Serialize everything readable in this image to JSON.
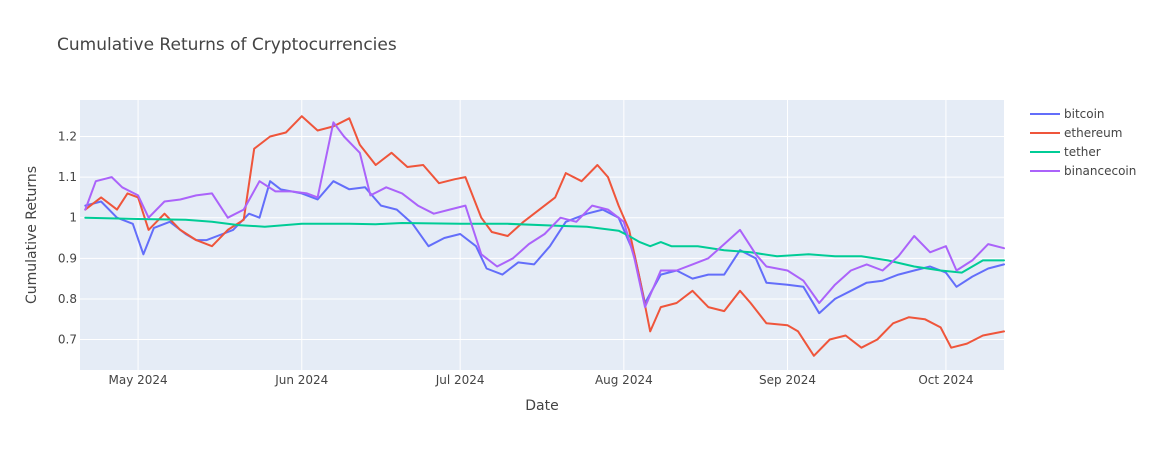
{
  "chart_data": {
    "type": "line",
    "title": "Cumulative Returns of Cryptocurrencies",
    "xlabel": "Date",
    "ylabel": "Cumulative Returns",
    "x_tick_labels": [
      "May 2024",
      "Jun 2024",
      "Jul 2024",
      "Aug 2024",
      "Sep 2024",
      "Oct 2024"
    ],
    "x_tick_dates": [
      "2024-05-01",
      "2024-06-01",
      "2024-07-01",
      "2024-08-01",
      "2024-09-01",
      "2024-10-01"
    ],
    "x_range": [
      "2024-04-20",
      "2024-10-12"
    ],
    "y_ticks": [
      0.7,
      0.8,
      0.9,
      1,
      1.1,
      1.2
    ],
    "y_tick_labels": [
      "0.7",
      "0.8",
      "0.9",
      "1",
      "1.1",
      "1.2"
    ],
    "ylim": [
      0.625,
      1.29
    ],
    "grid": true,
    "legend_position": "top-right",
    "background": "#e5ecf6",
    "series": [
      {
        "name": "bitcoin",
        "color": "#636efa",
        "points": [
          [
            "2024-04-21",
            1.03
          ],
          [
            "2024-04-24",
            1.04
          ],
          [
            "2024-04-27",
            1.0
          ],
          [
            "2024-04-30",
            0.985
          ],
          [
            "2024-05-02",
            0.91
          ],
          [
            "2024-05-04",
            0.975
          ],
          [
            "2024-05-07",
            0.99
          ],
          [
            "2024-05-10",
            0.96
          ],
          [
            "2024-05-12",
            0.945
          ],
          [
            "2024-05-14",
            0.945
          ],
          [
            "2024-05-17",
            0.96
          ],
          [
            "2024-05-19",
            0.97
          ],
          [
            "2024-05-22",
            1.01
          ],
          [
            "2024-05-24",
            1.0
          ],
          [
            "2024-05-26",
            1.09
          ],
          [
            "2024-05-28",
            1.07
          ],
          [
            "2024-06-01",
            1.06
          ],
          [
            "2024-06-04",
            1.045
          ],
          [
            "2024-06-07",
            1.09
          ],
          [
            "2024-06-10",
            1.07
          ],
          [
            "2024-06-13",
            1.075
          ],
          [
            "2024-06-16",
            1.03
          ],
          [
            "2024-06-19",
            1.02
          ],
          [
            "2024-06-22",
            0.985
          ],
          [
            "2024-06-25",
            0.93
          ],
          [
            "2024-06-28",
            0.95
          ],
          [
            "2024-07-01",
            0.96
          ],
          [
            "2024-07-04",
            0.93
          ],
          [
            "2024-07-06",
            0.875
          ],
          [
            "2024-07-09",
            0.86
          ],
          [
            "2024-07-12",
            0.89
          ],
          [
            "2024-07-15",
            0.885
          ],
          [
            "2024-07-18",
            0.93
          ],
          [
            "2024-07-21",
            0.99
          ],
          [
            "2024-07-25",
            1.01
          ],
          [
            "2024-07-28",
            1.02
          ],
          [
            "2024-07-31",
            1.0
          ],
          [
            "2024-08-03",
            0.91
          ],
          [
            "2024-08-05",
            0.79
          ],
          [
            "2024-08-08",
            0.86
          ],
          [
            "2024-08-11",
            0.87
          ],
          [
            "2024-08-14",
            0.85
          ],
          [
            "2024-08-17",
            0.86
          ],
          [
            "2024-08-20",
            0.86
          ],
          [
            "2024-08-23",
            0.92
          ],
          [
            "2024-08-26",
            0.9
          ],
          [
            "2024-08-28",
            0.84
          ],
          [
            "2024-09-01",
            0.835
          ],
          [
            "2024-09-04",
            0.83
          ],
          [
            "2024-09-07",
            0.765
          ],
          [
            "2024-09-10",
            0.8
          ],
          [
            "2024-09-13",
            0.82
          ],
          [
            "2024-09-16",
            0.84
          ],
          [
            "2024-09-19",
            0.845
          ],
          [
            "2024-09-22",
            0.86
          ],
          [
            "2024-09-25",
            0.87
          ],
          [
            "2024-09-28",
            0.88
          ],
          [
            "2024-10-01",
            0.865
          ],
          [
            "2024-10-03",
            0.83
          ],
          [
            "2024-10-06",
            0.855
          ],
          [
            "2024-10-09",
            0.875
          ],
          [
            "2024-10-12",
            0.885
          ]
        ]
      },
      {
        "name": "ethereum",
        "color": "#ef553b",
        "points": [
          [
            "2024-04-21",
            1.02
          ],
          [
            "2024-04-24",
            1.05
          ],
          [
            "2024-04-27",
            1.02
          ],
          [
            "2024-04-29",
            1.06
          ],
          [
            "2024-05-01",
            1.05
          ],
          [
            "2024-05-03",
            0.97
          ],
          [
            "2024-05-06",
            1.01
          ],
          [
            "2024-05-09",
            0.97
          ],
          [
            "2024-05-12",
            0.945
          ],
          [
            "2024-05-15",
            0.93
          ],
          [
            "2024-05-18",
            0.97
          ],
          [
            "2024-05-21",
            0.995
          ],
          [
            "2024-05-23",
            1.17
          ],
          [
            "2024-05-26",
            1.2
          ],
          [
            "2024-05-29",
            1.21
          ],
          [
            "2024-06-01",
            1.25
          ],
          [
            "2024-06-04",
            1.215
          ],
          [
            "2024-06-07",
            1.225
          ],
          [
            "2024-06-10",
            1.245
          ],
          [
            "2024-06-12",
            1.18
          ],
          [
            "2024-06-15",
            1.13
          ],
          [
            "2024-06-18",
            1.16
          ],
          [
            "2024-06-21",
            1.125
          ],
          [
            "2024-06-24",
            1.13
          ],
          [
            "2024-06-27",
            1.085
          ],
          [
            "2024-06-30",
            1.095
          ],
          [
            "2024-07-02",
            1.1
          ],
          [
            "2024-07-05",
            1.0
          ],
          [
            "2024-07-07",
            0.965
          ],
          [
            "2024-07-10",
            0.955
          ],
          [
            "2024-07-13",
            0.99
          ],
          [
            "2024-07-16",
            1.02
          ],
          [
            "2024-07-19",
            1.05
          ],
          [
            "2024-07-21",
            1.11
          ],
          [
            "2024-07-24",
            1.09
          ],
          [
            "2024-07-27",
            1.13
          ],
          [
            "2024-07-29",
            1.1
          ],
          [
            "2024-07-31",
            1.03
          ],
          [
            "2024-08-02",
            0.97
          ],
          [
            "2024-08-04",
            0.85
          ],
          [
            "2024-08-06",
            0.72
          ],
          [
            "2024-08-08",
            0.78
          ],
          [
            "2024-08-11",
            0.79
          ],
          [
            "2024-08-14",
            0.82
          ],
          [
            "2024-08-17",
            0.78
          ],
          [
            "2024-08-20",
            0.77
          ],
          [
            "2024-08-23",
            0.82
          ],
          [
            "2024-08-25",
            0.79
          ],
          [
            "2024-08-28",
            0.74
          ],
          [
            "2024-09-01",
            0.735
          ],
          [
            "2024-09-03",
            0.72
          ],
          [
            "2024-09-06",
            0.66
          ],
          [
            "2024-09-09",
            0.7
          ],
          [
            "2024-09-12",
            0.71
          ],
          [
            "2024-09-15",
            0.68
          ],
          [
            "2024-09-18",
            0.7
          ],
          [
            "2024-09-21",
            0.74
          ],
          [
            "2024-09-24",
            0.755
          ],
          [
            "2024-09-27",
            0.75
          ],
          [
            "2024-09-30",
            0.73
          ],
          [
            "2024-10-02",
            0.68
          ],
          [
            "2024-10-05",
            0.69
          ],
          [
            "2024-10-08",
            0.71
          ],
          [
            "2024-10-12",
            0.72
          ]
        ]
      },
      {
        "name": "tether",
        "color": "#00cc96",
        "points": [
          [
            "2024-04-21",
            1.0
          ],
          [
            "2024-05-01",
            0.997
          ],
          [
            "2024-05-10",
            0.995
          ],
          [
            "2024-05-15",
            0.99
          ],
          [
            "2024-05-20",
            0.982
          ],
          [
            "2024-05-25",
            0.978
          ],
          [
            "2024-06-01",
            0.985
          ],
          [
            "2024-06-10",
            0.985
          ],
          [
            "2024-06-15",
            0.984
          ],
          [
            "2024-06-20",
            0.987
          ],
          [
            "2024-07-01",
            0.985
          ],
          [
            "2024-07-10",
            0.985
          ],
          [
            "2024-07-20",
            0.98
          ],
          [
            "2024-07-25",
            0.978
          ],
          [
            "2024-07-31",
            0.968
          ],
          [
            "2024-08-02",
            0.955
          ],
          [
            "2024-08-04",
            0.94
          ],
          [
            "2024-08-06",
            0.93
          ],
          [
            "2024-08-08",
            0.94
          ],
          [
            "2024-08-10",
            0.93
          ],
          [
            "2024-08-15",
            0.93
          ],
          [
            "2024-08-20",
            0.92
          ],
          [
            "2024-08-25",
            0.915
          ],
          [
            "2024-08-30",
            0.905
          ],
          [
            "2024-09-05",
            0.91
          ],
          [
            "2024-09-10",
            0.905
          ],
          [
            "2024-09-15",
            0.905
          ],
          [
            "2024-09-20",
            0.895
          ],
          [
            "2024-09-25",
            0.88
          ],
          [
            "2024-09-30",
            0.87
          ],
          [
            "2024-10-04",
            0.865
          ],
          [
            "2024-10-08",
            0.895
          ],
          [
            "2024-10-12",
            0.895
          ]
        ]
      },
      {
        "name": "binancecoin",
        "color": "#ab63fa",
        "points": [
          [
            "2024-04-21",
            1.02
          ],
          [
            "2024-04-23",
            1.09
          ],
          [
            "2024-04-26",
            1.1
          ],
          [
            "2024-04-28",
            1.075
          ],
          [
            "2024-05-01",
            1.055
          ],
          [
            "2024-05-03",
            1.0
          ],
          [
            "2024-05-06",
            1.04
          ],
          [
            "2024-05-09",
            1.045
          ],
          [
            "2024-05-12",
            1.055
          ],
          [
            "2024-05-15",
            1.06
          ],
          [
            "2024-05-18",
            1.0
          ],
          [
            "2024-05-21",
            1.02
          ],
          [
            "2024-05-24",
            1.09
          ],
          [
            "2024-05-27",
            1.065
          ],
          [
            "2024-05-30",
            1.065
          ],
          [
            "2024-06-02",
            1.06
          ],
          [
            "2024-06-04",
            1.05
          ],
          [
            "2024-06-07",
            1.235
          ],
          [
            "2024-06-09",
            1.2
          ],
          [
            "2024-06-12",
            1.16
          ],
          [
            "2024-06-14",
            1.055
          ],
          [
            "2024-06-17",
            1.075
          ],
          [
            "2024-06-20",
            1.06
          ],
          [
            "2024-06-23",
            1.03
          ],
          [
            "2024-06-26",
            1.01
          ],
          [
            "2024-06-29",
            1.02
          ],
          [
            "2024-07-02",
            1.03
          ],
          [
            "2024-07-05",
            0.91
          ],
          [
            "2024-07-08",
            0.88
          ],
          [
            "2024-07-11",
            0.9
          ],
          [
            "2024-07-14",
            0.935
          ],
          [
            "2024-07-17",
            0.96
          ],
          [
            "2024-07-20",
            1.0
          ],
          [
            "2024-07-23",
            0.99
          ],
          [
            "2024-07-26",
            1.03
          ],
          [
            "2024-07-29",
            1.02
          ],
          [
            "2024-08-01",
            0.99
          ],
          [
            "2024-08-03",
            0.9
          ],
          [
            "2024-08-05",
            0.78
          ],
          [
            "2024-08-08",
            0.87
          ],
          [
            "2024-08-11",
            0.87
          ],
          [
            "2024-08-14",
            0.885
          ],
          [
            "2024-08-17",
            0.9
          ],
          [
            "2024-08-20",
            0.935
          ],
          [
            "2024-08-23",
            0.97
          ],
          [
            "2024-08-26",
            0.91
          ],
          [
            "2024-08-28",
            0.88
          ],
          [
            "2024-09-01",
            0.87
          ],
          [
            "2024-09-04",
            0.845
          ],
          [
            "2024-09-07",
            0.79
          ],
          [
            "2024-09-10",
            0.835
          ],
          [
            "2024-09-13",
            0.87
          ],
          [
            "2024-09-16",
            0.885
          ],
          [
            "2024-09-19",
            0.87
          ],
          [
            "2024-09-22",
            0.905
          ],
          [
            "2024-09-25",
            0.955
          ],
          [
            "2024-09-28",
            0.915
          ],
          [
            "2024-10-01",
            0.93
          ],
          [
            "2024-10-03",
            0.87
          ],
          [
            "2024-10-06",
            0.895
          ],
          [
            "2024-10-09",
            0.935
          ],
          [
            "2024-10-12",
            0.925
          ]
        ]
      }
    ]
  }
}
